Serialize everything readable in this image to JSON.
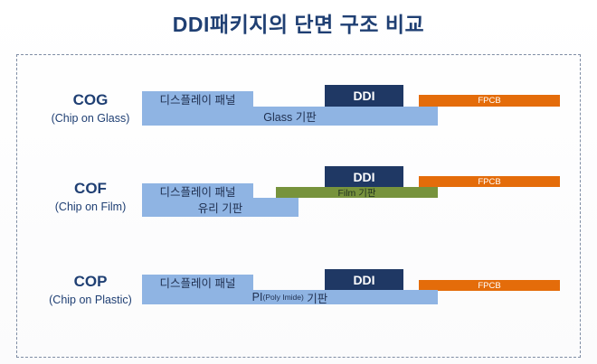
{
  "title": "DDI패키지의 단면 구조 비교",
  "packages": [
    {
      "name": "COG",
      "subtitle": "(Chip on Glass)",
      "display_label": "디스플레이 패널",
      "substrate_label": "Glass 기판",
      "ddi_label": "DDI",
      "fpcb_label": "FPCB"
    },
    {
      "name": "COF",
      "subtitle": "(Chip on Film)",
      "display_label": "디스플레이 패널",
      "substrate_label": "유리 기판",
      "film_label": "Film 기판",
      "ddi_label": "DDI",
      "fpcb_label": "FPCB"
    },
    {
      "name": "COP",
      "subtitle": "(Chip on Plastic)",
      "display_label": "디스플레이 패널",
      "substrate_main": "PI",
      "substrate_paren": "(Poly Imide)",
      "substrate_suffix": " 기판",
      "ddi_label": "DDI",
      "fpcb_label": "FPCB"
    }
  ],
  "colors": {
    "title": "#1f3f73",
    "panel": "#8fb4e3",
    "ddi": "#1f3864",
    "fpcb": "#e46c0a",
    "film": "#77933c"
  }
}
